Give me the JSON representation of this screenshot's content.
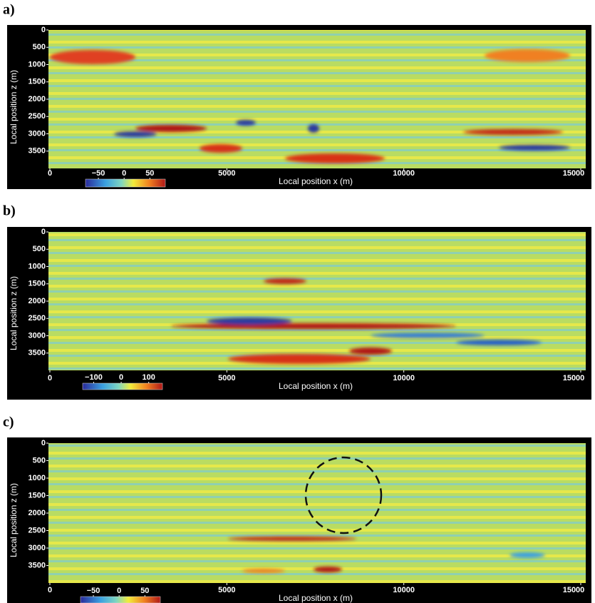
{
  "chart_data": [
    {
      "type": "heatmap",
      "panel_label": "a)",
      "xlabel": "Local position x (m)",
      "ylabel": "Local position z (m)",
      "xlim": [
        0,
        15000
      ],
      "ylim": [
        0,
        4000
      ],
      "xticks": [
        0,
        5000,
        10000,
        15000
      ],
      "yticks": [
        0,
        500,
        1000,
        1500,
        2000,
        2500,
        3000,
        3500
      ],
      "clim": [
        -75,
        80
      ],
      "cticks": [
        {
          "value": -50,
          "label": "−50"
        },
        0,
        50
      ]
    },
    {
      "type": "heatmap",
      "panel_label": "b)",
      "xlabel": "Local position x (m)",
      "ylabel": "Local position z (m)",
      "xlim": [
        0,
        15000
      ],
      "ylim": [
        0,
        4000
      ],
      "xticks": [
        0,
        5000,
        10000,
        15000
      ],
      "yticks": [
        0,
        500,
        1000,
        1500,
        2000,
        2500,
        3000,
        3500
      ],
      "clim": [
        -140,
        150
      ],
      "cticks": [
        {
          "value": -100,
          "label": "−100"
        },
        0,
        100
      ]
    },
    {
      "type": "heatmap",
      "panel_label": "c)",
      "xlabel": "Local position x (m)",
      "ylabel": "Local position z (m)",
      "xlim": [
        0,
        15000
      ],
      "ylim": [
        0,
        4000
      ],
      "xticks": [
        0,
        5000,
        10000,
        15000
      ],
      "yticks": [
        0,
        500,
        1000,
        1500,
        2000,
        2500,
        3000,
        3500
      ],
      "clim": [
        -75,
        80
      ],
      "cticks": [
        {
          "value": -50,
          "label": "−50"
        },
        0,
        50
      ]
    }
  ]
}
